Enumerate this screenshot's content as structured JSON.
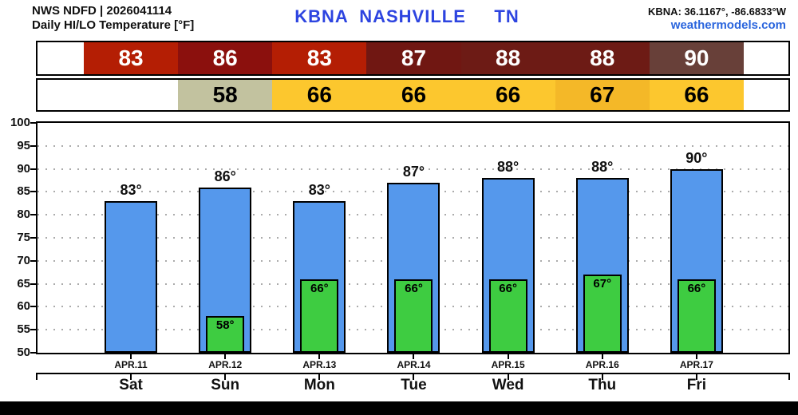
{
  "header": {
    "line1": "NWS NDFD | 2026041114",
    "line2": "Daily HI/LO Temperature [°F]",
    "station": "KBNA  NASHVILLE     TN",
    "coords": "KBNA: 36.1167°, -86.6833°W",
    "site": "weathermodels.com"
  },
  "colors": {
    "station_blue": "#2d44e0",
    "site_blue": "#2a65dd",
    "hi_bar_fill": "#5598ec",
    "lo_bar_fill": "#3ecc41",
    "grid_gray": "#ababab"
  },
  "hi_row": {
    "name": "HI",
    "start_col": 0,
    "cells": [
      {
        "value": "83",
        "bg": "#b41e04",
        "fg": "#ffffff"
      },
      {
        "value": "86",
        "bg": "#8b100d",
        "fg": "#ffffff"
      },
      {
        "value": "83",
        "bg": "#b41e04",
        "fg": "#ffffff"
      },
      {
        "value": "87",
        "bg": "#701712",
        "fg": "#ffffff"
      },
      {
        "value": "88",
        "bg": "#6d1b15",
        "fg": "#ffffff"
      },
      {
        "value": "88",
        "bg": "#6d1b15",
        "fg": "#ffffff"
      },
      {
        "value": "90",
        "bg": "#684039",
        "fg": "#ffffff"
      }
    ]
  },
  "lo_row": {
    "name": "LO",
    "start_col": 1,
    "cells": [
      {
        "value": "58",
        "bg": "#c2c29f",
        "fg": "#000000"
      },
      {
        "value": "66",
        "bg": "#fcc72e",
        "fg": "#000000"
      },
      {
        "value": "66",
        "bg": "#fcc72e",
        "fg": "#000000"
      },
      {
        "value": "66",
        "bg": "#fcc72e",
        "fg": "#000000"
      },
      {
        "value": "67",
        "bg": "#f4b828",
        "fg": "#000000"
      },
      {
        "value": "66",
        "bg": "#fcc72e",
        "fg": "#000000"
      }
    ]
  },
  "chart_data": {
    "type": "bar",
    "title": "Daily HI/LO Temperature [°F]",
    "station": "KBNA NASHVILLE TN",
    "categories": [
      "APR.11",
      "APR.12",
      "APR.13",
      "APR.14",
      "APR.15",
      "APR.16",
      "APR.17"
    ],
    "day_labels": [
      "Sat",
      "Sun",
      "Mon",
      "Tue",
      "Wed",
      "Thu",
      "Fri"
    ],
    "series": [
      {
        "name": "HI",
        "values": [
          83,
          86,
          83,
          87,
          88,
          88,
          90
        ],
        "color": "#5598ec",
        "label_suffix": "°"
      },
      {
        "name": "LO",
        "values": [
          null,
          58,
          66,
          66,
          66,
          67,
          66
        ],
        "color": "#3ecc41",
        "label_suffix": "°"
      }
    ],
    "ylim": [
      50,
      100
    ],
    "ytick_step": 5,
    "grid": "dotted-horizontal",
    "legend": "none"
  }
}
